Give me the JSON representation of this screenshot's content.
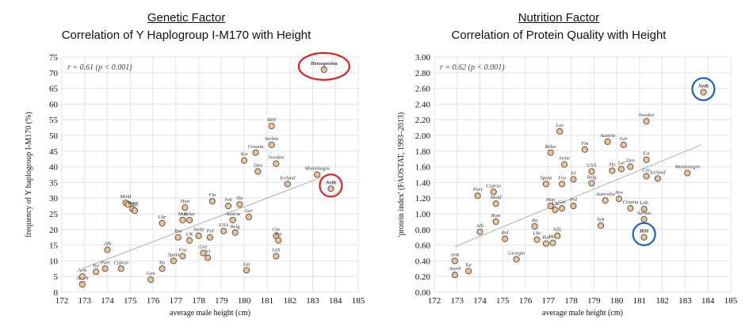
{
  "chart_data": [
    {
      "type": "scatter",
      "heading": "Genetic Factor",
      "title": "Correlation of Y Haplogroup I-M170 with Height",
      "xlabel": "average male height (cm)",
      "ylabel": "frequency of Y haplogroup I-M170 (%)",
      "xlim": [
        172,
        185
      ],
      "ylim": [
        0,
        75
      ],
      "xticks": [
        172,
        173,
        174,
        175,
        176,
        177,
        178,
        179,
        180,
        181,
        182,
        183,
        184,
        185
      ],
      "yticks": [
        0,
        5,
        10,
        15,
        20,
        25,
        30,
        35,
        40,
        45,
        50,
        55,
        60,
        65,
        70,
        75
      ],
      "tick_decimals": 0,
      "correlation": "r = 0.61 (p < 0.001)",
      "trend": [
        [
          172.9,
          7.5
        ],
        [
          183.7,
          37.5
        ]
      ],
      "highlight": {
        "point": "Herzegovina",
        "color": "#e02020"
      },
      "highlight2": {
        "point": "Neth",
        "color": "#e02020"
      },
      "points": [
        {
          "label": "Azerb",
          "x": 172.9,
          "y": 2.5
        },
        {
          "label": "Arm",
          "x": 172.9,
          "y": 5.0
        },
        {
          "label": "Tur",
          "x": 173.5,
          "y": 6.5
        },
        {
          "label": "Port",
          "x": 173.9,
          "y": 7.5
        },
        {
          "label": "Alb",
          "x": 174.0,
          "y": 13.5
        },
        {
          "label": "Cyprus",
          "x": 174.6,
          "y": 7.5
        },
        {
          "label": "Mold",
          "x": 174.8,
          "y": 28.5
        },
        {
          "label": "",
          "x": 174.9,
          "y": 28.0
        },
        {
          "label": "Rom",
          "x": 175.1,
          "y": 26.5
        },
        {
          "label": "Bul",
          "x": 175.2,
          "y": 26.0
        },
        {
          "label": "Geo",
          "x": 175.9,
          "y": 4.0
        },
        {
          "label": "Ukr",
          "x": 176.4,
          "y": 22.0
        },
        {
          "label": "Ita",
          "x": 176.4,
          "y": 7.5
        },
        {
          "label": "Spain",
          "x": 176.9,
          "y": 10.0
        },
        {
          "label": "Fra",
          "x": 177.3,
          "y": 11.5
        },
        {
          "label": "Rus",
          "x": 177.1,
          "y": 17.5
        },
        {
          "label": "Mac",
          "x": 177.3,
          "y": 23.0
        },
        {
          "label": "Hun",
          "x": 177.4,
          "y": 27.0
        },
        {
          "label": "Belar",
          "x": 177.6,
          "y": 23.0
        },
        {
          "label": "UK",
          "x": 177.6,
          "y": 16.5
        },
        {
          "label": "Switz",
          "x": 178.0,
          "y": 18.0
        },
        {
          "label": "Irl",
          "x": 178.4,
          "y": 11.0
        },
        {
          "label": "Gre",
          "x": 178.2,
          "y": 12.5
        },
        {
          "label": "Pol",
          "x": 178.5,
          "y": 17.5
        },
        {
          "label": "Fin",
          "x": 178.6,
          "y": 29.0
        },
        {
          "label": "USA",
          "x": 179.1,
          "y": 19.5
        },
        {
          "label": "Svk",
          "x": 179.3,
          "y": 27.5
        },
        {
          "label": "Austria",
          "x": 179.5,
          "y": 23.0
        },
        {
          "label": "Belg",
          "x": 179.6,
          "y": 19.0
        },
        {
          "label": "Slo",
          "x": 179.8,
          "y": 28.0
        },
        {
          "label": "Ger",
          "x": 180.2,
          "y": 24.0
        },
        {
          "label": "Lat",
          "x": 180.1,
          "y": 7.0
        },
        {
          "label": "Nor",
          "x": 180.0,
          "y": 42.0
        },
        {
          "label": "Croatia",
          "x": 180.5,
          "y": 44.5
        },
        {
          "label": "Den",
          "x": 180.6,
          "y": 38.5
        },
        {
          "label": "BiH",
          "x": 181.2,
          "y": 53.0
        },
        {
          "label": "Serbia",
          "x": 181.2,
          "y": 47.0
        },
        {
          "label": "Sweden",
          "x": 181.4,
          "y": 41.0
        },
        {
          "label": "Cze",
          "x": 181.4,
          "y": 18.0
        },
        {
          "label": "Est",
          "x": 181.5,
          "y": 16.5
        },
        {
          "label": "Lith",
          "x": 181.4,
          "y": 11.5
        },
        {
          "label": "Iceland",
          "x": 181.9,
          "y": 34.5
        },
        {
          "label": "Montenegro",
          "x": 183.2,
          "y": 37.5
        },
        {
          "label": "Neth",
          "x": 183.8,
          "y": 33.0
        },
        {
          "label": "Herzegovina",
          "x": 183.5,
          "y": 71.0
        }
      ]
    },
    {
      "type": "scatter",
      "heading": "Nutrition Factor",
      "title": "Correlation of Protein Quality with Height",
      "xlabel": "average male height (cm)",
      "ylabel": "'protein index' (FAOSTAT, 1993–2013)",
      "xlim": [
        172,
        185
      ],
      "ylim": [
        0,
        3
      ],
      "xticks": [
        172,
        173,
        174,
        175,
        176,
        177,
        178,
        179,
        180,
        181,
        182,
        183,
        184,
        185
      ],
      "yticks": [
        0,
        0.2,
        0.4,
        0.6,
        0.8,
        1.0,
        1.2,
        1.4,
        1.6,
        1.8,
        2.0,
        2.2,
        2.4,
        2.6,
        2.8,
        3.0
      ],
      "tick_decimals": 2,
      "correlation": "r = 0.62 (p < 0.001)",
      "trend": [
        [
          172.9,
          0.58
        ],
        [
          183.7,
          1.88
        ]
      ],
      "highlight": {
        "point": "Neth",
        "color": "#1a5fc8"
      },
      "highlight2": {
        "point": "BiH",
        "color": "#1a5fc8"
      },
      "points": [
        {
          "label": "Azerb",
          "x": 172.9,
          "y": 0.22
        },
        {
          "label": "Arm",
          "x": 172.9,
          "y": 0.4
        },
        {
          "label": "Tur",
          "x": 173.5,
          "y": 0.27
        },
        {
          "label": "Port",
          "x": 173.9,
          "y": 1.23
        },
        {
          "label": "Alb",
          "x": 174.0,
          "y": 0.77
        },
        {
          "label": "Cyprus",
          "x": 174.6,
          "y": 1.28
        },
        {
          "label": "Mold",
          "x": 174.7,
          "y": 1.13
        },
        {
          "label": "Rom",
          "x": 174.7,
          "y": 0.9
        },
        {
          "label": "Bul",
          "x": 175.1,
          "y": 0.68
        },
        {
          "label": "Georgia",
          "x": 175.6,
          "y": 0.42
        },
        {
          "label": "Ita",
          "x": 176.4,
          "y": 0.84
        },
        {
          "label": "Ukr",
          "x": 176.5,
          "y": 0.67
        },
        {
          "label": "Spain",
          "x": 176.9,
          "y": 1.38
        },
        {
          "label": "Rus",
          "x": 176.9,
          "y": 0.62
        },
        {
          "label": "Mac",
          "x": 177.2,
          "y": 0.63
        },
        {
          "label": "NZL",
          "x": 177.4,
          "y": 0.72
        },
        {
          "label": "Hun",
          "x": 177.1,
          "y": 1.1
        },
        {
          "label": "UK",
          "x": 177.3,
          "y": 1.05
        },
        {
          "label": "Gre",
          "x": 177.6,
          "y": 1.07
        },
        {
          "label": "Pol",
          "x": 178.1,
          "y": 1.1
        },
        {
          "label": "Fra",
          "x": 177.6,
          "y": 1.38
        },
        {
          "label": "Belar",
          "x": 177.1,
          "y": 1.78
        },
        {
          "label": "Lux",
          "x": 177.5,
          "y": 2.05
        },
        {
          "label": "Switz",
          "x": 177.7,
          "y": 1.63
        },
        {
          "label": "Irl",
          "x": 178.1,
          "y": 1.44
        },
        {
          "label": "Fin",
          "x": 178.6,
          "y": 1.82
        },
        {
          "label": "USA",
          "x": 178.9,
          "y": 1.54
        },
        {
          "label": "Belg",
          "x": 178.9,
          "y": 1.39
        },
        {
          "label": "Australia",
          "x": 179.5,
          "y": 1.17
        },
        {
          "label": "Svk",
          "x": 179.3,
          "y": 0.85
        },
        {
          "label": "Austria",
          "x": 179.6,
          "y": 1.92
        },
        {
          "label": "Slo",
          "x": 179.8,
          "y": 1.55
        },
        {
          "label": "Nor",
          "x": 180.1,
          "y": 1.19
        },
        {
          "label": "Ger",
          "x": 180.3,
          "y": 1.88
        },
        {
          "label": "Lat",
          "x": 180.2,
          "y": 1.57
        },
        {
          "label": "Den",
          "x": 180.6,
          "y": 1.6
        },
        {
          "label": "Croatia",
          "x": 180.6,
          "y": 1.07
        },
        {
          "label": "Sweden",
          "x": 181.3,
          "y": 2.18
        },
        {
          "label": "Est",
          "x": 181.3,
          "y": 1.69
        },
        {
          "label": "Cze",
          "x": 181.3,
          "y": 1.48
        },
        {
          "label": "Lith",
          "x": 181.2,
          "y": 1.06
        },
        {
          "label": "Serbia",
          "x": 181.2,
          "y": 0.93
        },
        {
          "label": "BiH",
          "x": 181.2,
          "y": 0.7
        },
        {
          "label": "Iceland",
          "x": 181.8,
          "y": 1.45
        },
        {
          "label": "Montenegro",
          "x": 183.1,
          "y": 1.52
        },
        {
          "label": "Neth",
          "x": 183.8,
          "y": 2.55
        }
      ]
    }
  ]
}
